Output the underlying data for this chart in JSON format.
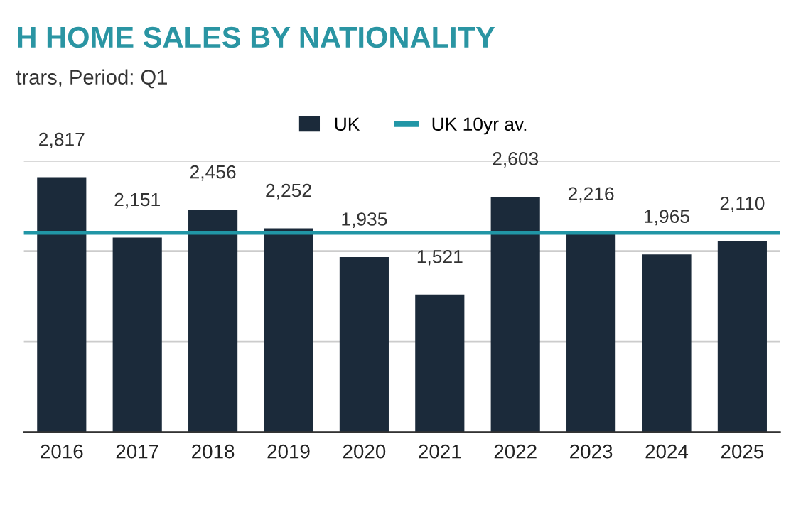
{
  "chart_data": {
    "type": "bar",
    "title": "H HOME SALES BY NATIONALITY",
    "subtitle": "trars, Period: Q1",
    "categories": [
      "2016",
      "2017",
      "2018",
      "2019",
      "2020",
      "2021",
      "2022",
      "2023",
      "2024",
      "2025"
    ],
    "series": [
      {
        "name": "UK",
        "color": "#1b2a3a",
        "values": [
          2817,
          2151,
          2456,
          2252,
          1935,
          1521,
          2603,
          2216,
          1965,
          2110
        ],
        "value_labels": [
          "2,817",
          "2,151",
          "2,456",
          "2,252",
          "1,935",
          "1,521",
          "2,603",
          "2,216",
          "1,965",
          "2,110"
        ]
      }
    ],
    "ref_lines": [
      {
        "axis": "y",
        "value": 2203,
        "label": "UK 10yr av.",
        "color": "#2196a6"
      }
    ],
    "ylim": [
      0,
      3000
    ],
    "yticks": [
      {
        "value": 0,
        "label": null
      },
      {
        "value": 1000,
        "label": null
      },
      {
        "value": 2000,
        "label": null
      },
      {
        "value": 3000,
        "label": null
      }
    ],
    "tick_labels": "x",
    "grid": "y",
    "legend": "top"
  }
}
